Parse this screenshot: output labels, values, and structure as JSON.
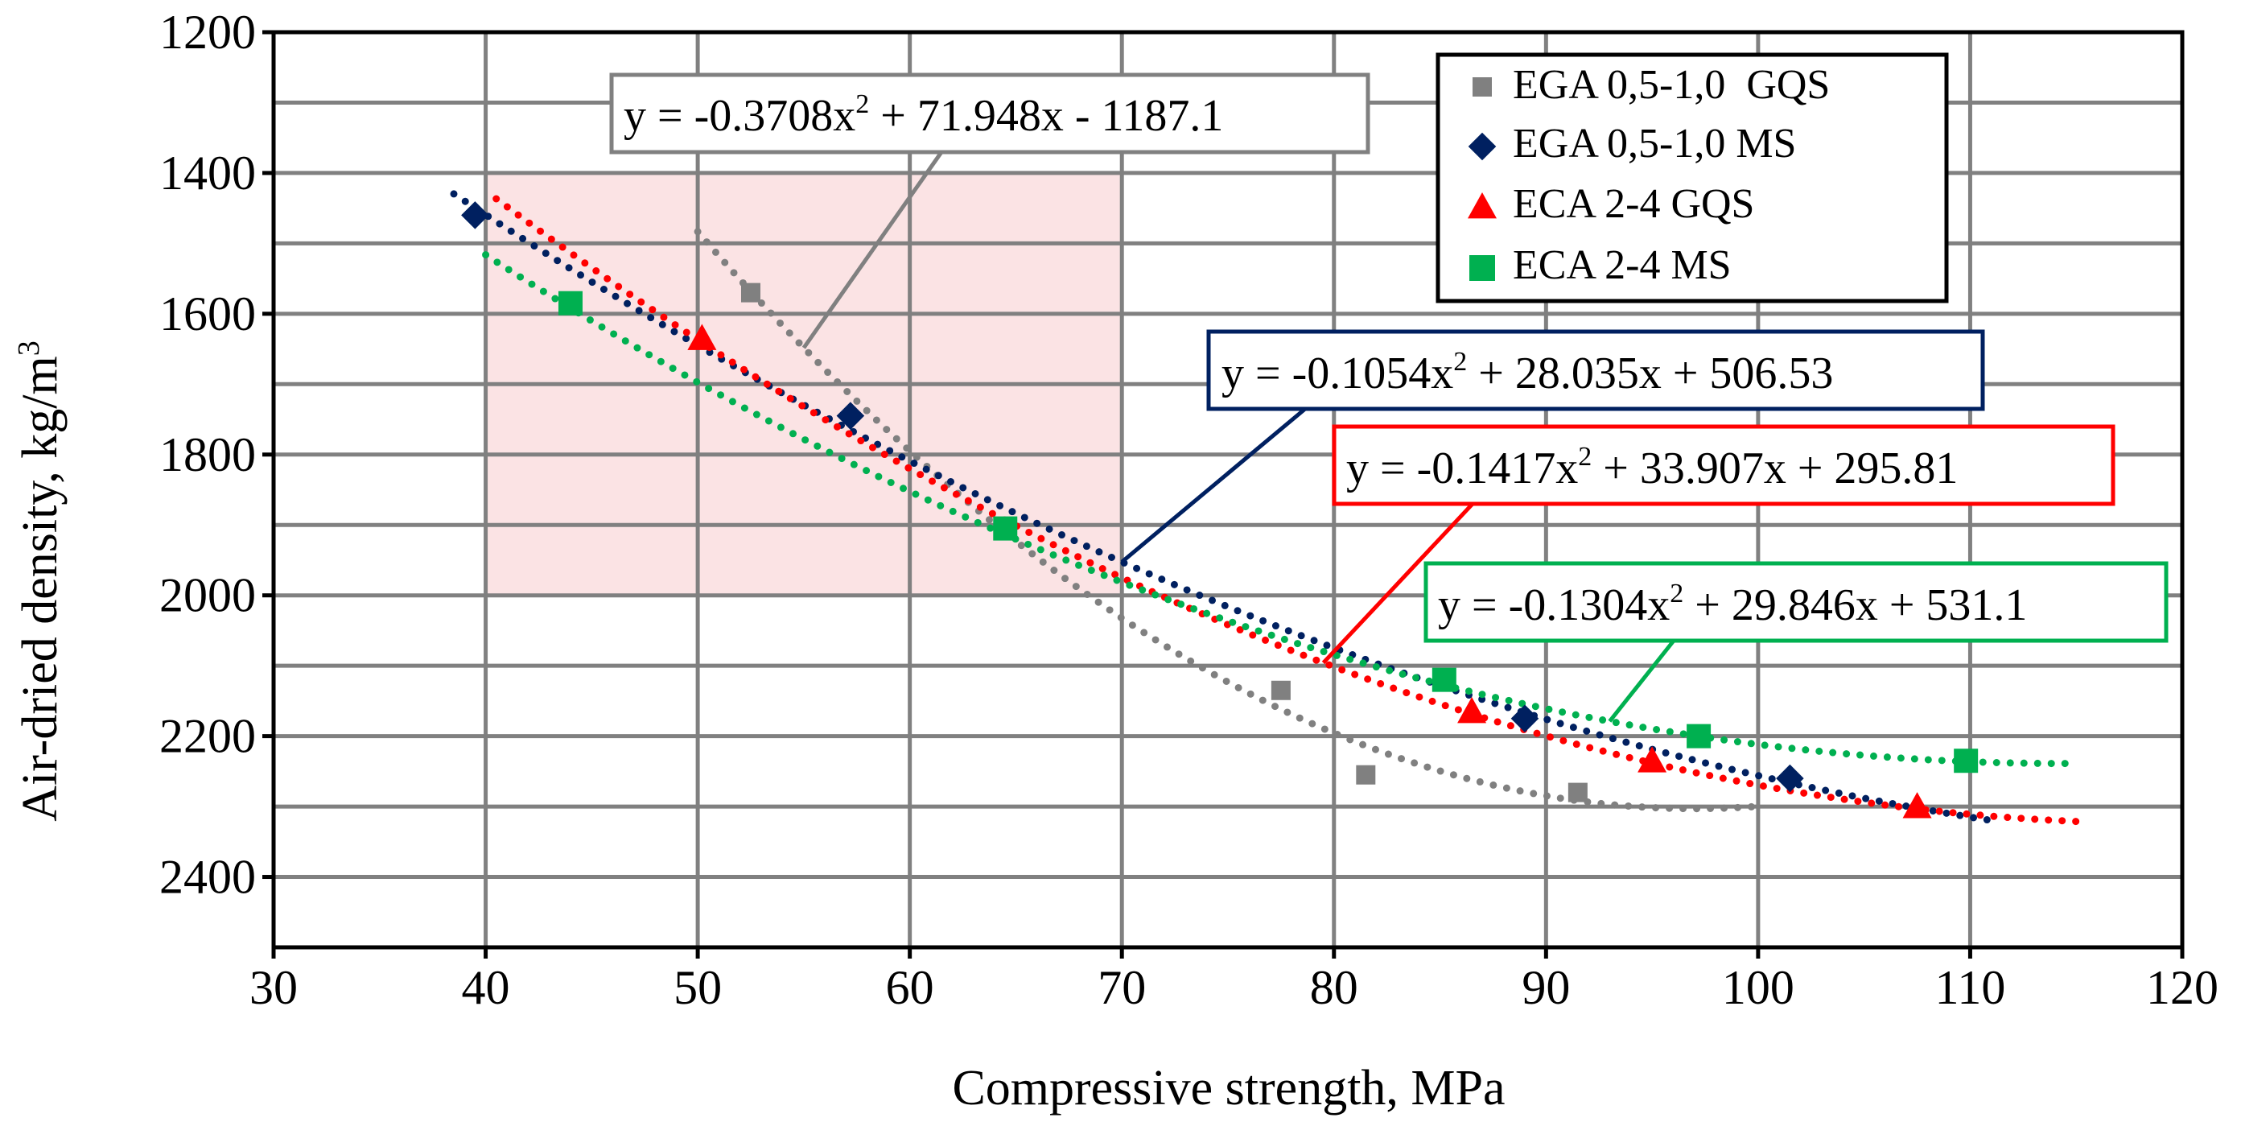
{
  "chart_data": {
    "type": "scatter",
    "xlabel": "Compressive strength, MPa",
    "ylabel": "Air-dried density, kg/m",
    "ylabel_sup": "3",
    "xlim": [
      30,
      120
    ],
    "ylim": [
      1200,
      2500
    ],
    "y_inverted": true,
    "x_ticks": [
      30,
      40,
      50,
      60,
      70,
      80,
      90,
      100,
      110,
      120
    ],
    "y_ticks": [
      1200,
      1400,
      1600,
      1800,
      2000,
      2200,
      2400
    ],
    "grid": true,
    "legend_position": "top-right",
    "highlight_region": {
      "x": [
        40,
        70
      ],
      "y": [
        1400,
        2000
      ],
      "color": "#fbe3e4"
    },
    "series": [
      {
        "name": "EGA 0,5-1,0  GQS",
        "color": "#808080",
        "marker": "square",
        "x": [
          52.5,
          77.5,
          81.5,
          91.5
        ],
        "y": [
          1570,
          2135,
          2255,
          2280
        ],
        "trendline": {
          "coef": [
            -0.3708,
            71.948,
            -1187.1
          ],
          "x_range": [
            50,
            100
          ],
          "equation": "y = -0.3708x2 + 71.948x - 1187.1"
        }
      },
      {
        "name": "EGA 0,5-1,0 MS",
        "color": "#002060",
        "marker": "diamond",
        "x": [
          39.5,
          57.2,
          89,
          101.5
        ],
        "y": [
          1460,
          1745,
          2175,
          2260
        ],
        "trendline": {
          "coef": [
            -0.1054,
            28.035,
            506.53
          ],
          "x_range": [
            38.5,
            111
          ],
          "equation": "y = -0.1054x2 + 28.035x + 506.53"
        }
      },
      {
        "name": "ECA 2-4 GQS",
        "color": "#ff0000",
        "marker": "triangle",
        "x": [
          50.2,
          86.5,
          95,
          107.5
        ],
        "y": [
          1635,
          2165,
          2235,
          2300
        ],
        "trendline": {
          "coef": [
            -0.1417,
            33.907,
            295.81
          ],
          "x_range": [
            40.5,
            115
          ],
          "equation": "y = -0.1417x2 + 33.907x + 295.81"
        }
      },
      {
        "name": "ECA 2-4 MS",
        "color": "#00b050",
        "marker": "square",
        "x": [
          44,
          64.5,
          85.2,
          97.2,
          109.8
        ],
        "y": [
          1585,
          1905,
          2120,
          2200,
          2235
        ],
        "trendline": {
          "coef": [
            -0.1304,
            29.846,
            531.1
          ],
          "x_range": [
            40,
            115
          ],
          "equation": "y = -0.1304x2 + 29.846x + 531.1"
        }
      }
    ],
    "annotations": [
      {
        "parts": [
          "y = -0.3708x",
          "2",
          " + 71.948x - 1187.1"
        ],
        "border": "#808080"
      },
      {
        "parts": [
          "y = -0.1054x",
          "2",
          " + 28.035x + 506.53"
        ],
        "border": "#002060"
      },
      {
        "parts": [
          "y = -0.1417x",
          "2",
          " + 33.907x + 295.81"
        ],
        "border": "#ff0000"
      },
      {
        "parts": [
          "y = -0.1304x",
          "2",
          " + 29.846x + 531.1"
        ],
        "border": "#00b050"
      }
    ]
  }
}
